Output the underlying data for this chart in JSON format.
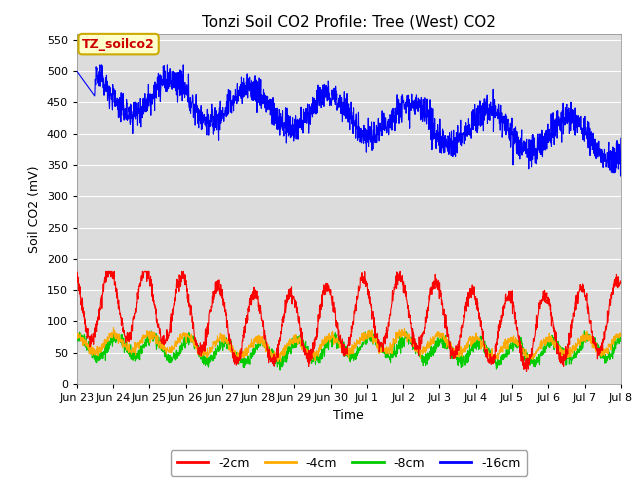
{
  "title": "Tonzi Soil CO2 Profile: Tree (West) CO2",
  "xlabel": "Time",
  "ylabel": "Soil CO2 (mV)",
  "ylim": [
    0,
    560
  ],
  "yticks": [
    0,
    50,
    100,
    150,
    200,
    250,
    300,
    350,
    400,
    450,
    500,
    550
  ],
  "background_color": "#dcdcdc",
  "plot_bg_color": "#dcdcdc",
  "legend_label_box": "TZ_soilco2",
  "legend_box_bg": "#ffffcc",
  "legend_box_border": "#ccaa00",
  "legend_box_text_color": "#cc0000",
  "series_colors": {
    "-2cm": "#ff0000",
    "-4cm": "#ffaa00",
    "-8cm": "#00cc00",
    "-16cm": "#0000ff"
  },
  "n_points": 2000,
  "xtick_labels": [
    "Jun 23",
    "Jun 24",
    "Jun 25",
    "Jun 26",
    "Jun 27",
    "Jun 28",
    "Jun 29",
    "Jun 30",
    "Jul 1",
    "Jul 2",
    "Jul 3",
    "Jul 4",
    "Jul 5",
    "Jul 6",
    "Jul 7",
    "Jul 8"
  ],
  "grid_color": "#ffffff",
  "line_width": 0.8,
  "title_fontsize": 11,
  "axis_fontsize": 9,
  "tick_fontsize": 8
}
